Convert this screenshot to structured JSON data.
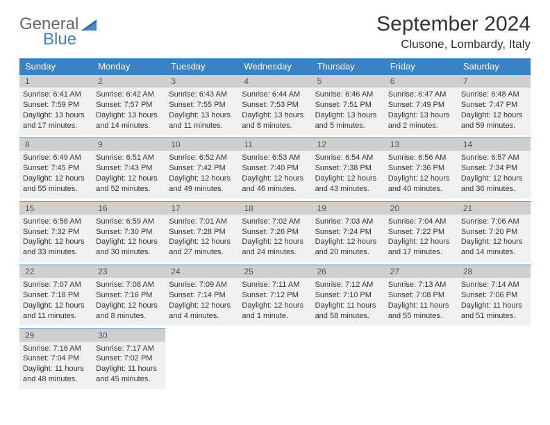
{
  "logo": {
    "word1": "General",
    "word2": "Blue"
  },
  "title": "September 2024",
  "location": "Clusone, Lombardy, Italy",
  "colors": {
    "header_bg": "#3b82c4",
    "header_fg": "#ffffff",
    "daynum_bg": "#cfcfcf",
    "cell_bg": "#f0f0f0",
    "text": "#333333"
  },
  "dayNames": [
    "Sunday",
    "Monday",
    "Tuesday",
    "Wednesday",
    "Thursday",
    "Friday",
    "Saturday"
  ],
  "weeks": [
    [
      {
        "n": "1",
        "sr": "6:41 AM",
        "ss": "7:59 PM",
        "dl": "13 hours and 17 minutes."
      },
      {
        "n": "2",
        "sr": "6:42 AM",
        "ss": "7:57 PM",
        "dl": "13 hours and 14 minutes."
      },
      {
        "n": "3",
        "sr": "6:43 AM",
        "ss": "7:55 PM",
        "dl": "13 hours and 11 minutes."
      },
      {
        "n": "4",
        "sr": "6:44 AM",
        "ss": "7:53 PM",
        "dl": "13 hours and 8 minutes."
      },
      {
        "n": "5",
        "sr": "6:46 AM",
        "ss": "7:51 PM",
        "dl": "13 hours and 5 minutes."
      },
      {
        "n": "6",
        "sr": "6:47 AM",
        "ss": "7:49 PM",
        "dl": "13 hours and 2 minutes."
      },
      {
        "n": "7",
        "sr": "6:48 AM",
        "ss": "7:47 PM",
        "dl": "12 hours and 59 minutes."
      }
    ],
    [
      {
        "n": "8",
        "sr": "6:49 AM",
        "ss": "7:45 PM",
        "dl": "12 hours and 55 minutes."
      },
      {
        "n": "9",
        "sr": "6:51 AM",
        "ss": "7:43 PM",
        "dl": "12 hours and 52 minutes."
      },
      {
        "n": "10",
        "sr": "6:52 AM",
        "ss": "7:42 PM",
        "dl": "12 hours and 49 minutes."
      },
      {
        "n": "11",
        "sr": "6:53 AM",
        "ss": "7:40 PM",
        "dl": "12 hours and 46 minutes."
      },
      {
        "n": "12",
        "sr": "6:54 AM",
        "ss": "7:38 PM",
        "dl": "12 hours and 43 minutes."
      },
      {
        "n": "13",
        "sr": "6:56 AM",
        "ss": "7:36 PM",
        "dl": "12 hours and 40 minutes."
      },
      {
        "n": "14",
        "sr": "6:57 AM",
        "ss": "7:34 PM",
        "dl": "12 hours and 36 minutes."
      }
    ],
    [
      {
        "n": "15",
        "sr": "6:58 AM",
        "ss": "7:32 PM",
        "dl": "12 hours and 33 minutes."
      },
      {
        "n": "16",
        "sr": "6:59 AM",
        "ss": "7:30 PM",
        "dl": "12 hours and 30 minutes."
      },
      {
        "n": "17",
        "sr": "7:01 AM",
        "ss": "7:28 PM",
        "dl": "12 hours and 27 minutes."
      },
      {
        "n": "18",
        "sr": "7:02 AM",
        "ss": "7:26 PM",
        "dl": "12 hours and 24 minutes."
      },
      {
        "n": "19",
        "sr": "7:03 AM",
        "ss": "7:24 PM",
        "dl": "12 hours and 20 minutes."
      },
      {
        "n": "20",
        "sr": "7:04 AM",
        "ss": "7:22 PM",
        "dl": "12 hours and 17 minutes."
      },
      {
        "n": "21",
        "sr": "7:06 AM",
        "ss": "7:20 PM",
        "dl": "12 hours and 14 minutes."
      }
    ],
    [
      {
        "n": "22",
        "sr": "7:07 AM",
        "ss": "7:18 PM",
        "dl": "12 hours and 11 minutes."
      },
      {
        "n": "23",
        "sr": "7:08 AM",
        "ss": "7:16 PM",
        "dl": "12 hours and 8 minutes."
      },
      {
        "n": "24",
        "sr": "7:09 AM",
        "ss": "7:14 PM",
        "dl": "12 hours and 4 minutes."
      },
      {
        "n": "25",
        "sr": "7:11 AM",
        "ss": "7:12 PM",
        "dl": "12 hours and 1 minute."
      },
      {
        "n": "26",
        "sr": "7:12 AM",
        "ss": "7:10 PM",
        "dl": "11 hours and 58 minutes."
      },
      {
        "n": "27",
        "sr": "7:13 AM",
        "ss": "7:08 PM",
        "dl": "11 hours and 55 minutes."
      },
      {
        "n": "28",
        "sr": "7:14 AM",
        "ss": "7:06 PM",
        "dl": "11 hours and 51 minutes."
      }
    ],
    [
      {
        "n": "29",
        "sr": "7:16 AM",
        "ss": "7:04 PM",
        "dl": "11 hours and 48 minutes."
      },
      {
        "n": "30",
        "sr": "7:17 AM",
        "ss": "7:02 PM",
        "dl": "11 hours and 45 minutes."
      },
      null,
      null,
      null,
      null,
      null
    ]
  ],
  "labels": {
    "sunrise": "Sunrise:",
    "sunset": "Sunset:",
    "daylight": "Daylight:"
  }
}
